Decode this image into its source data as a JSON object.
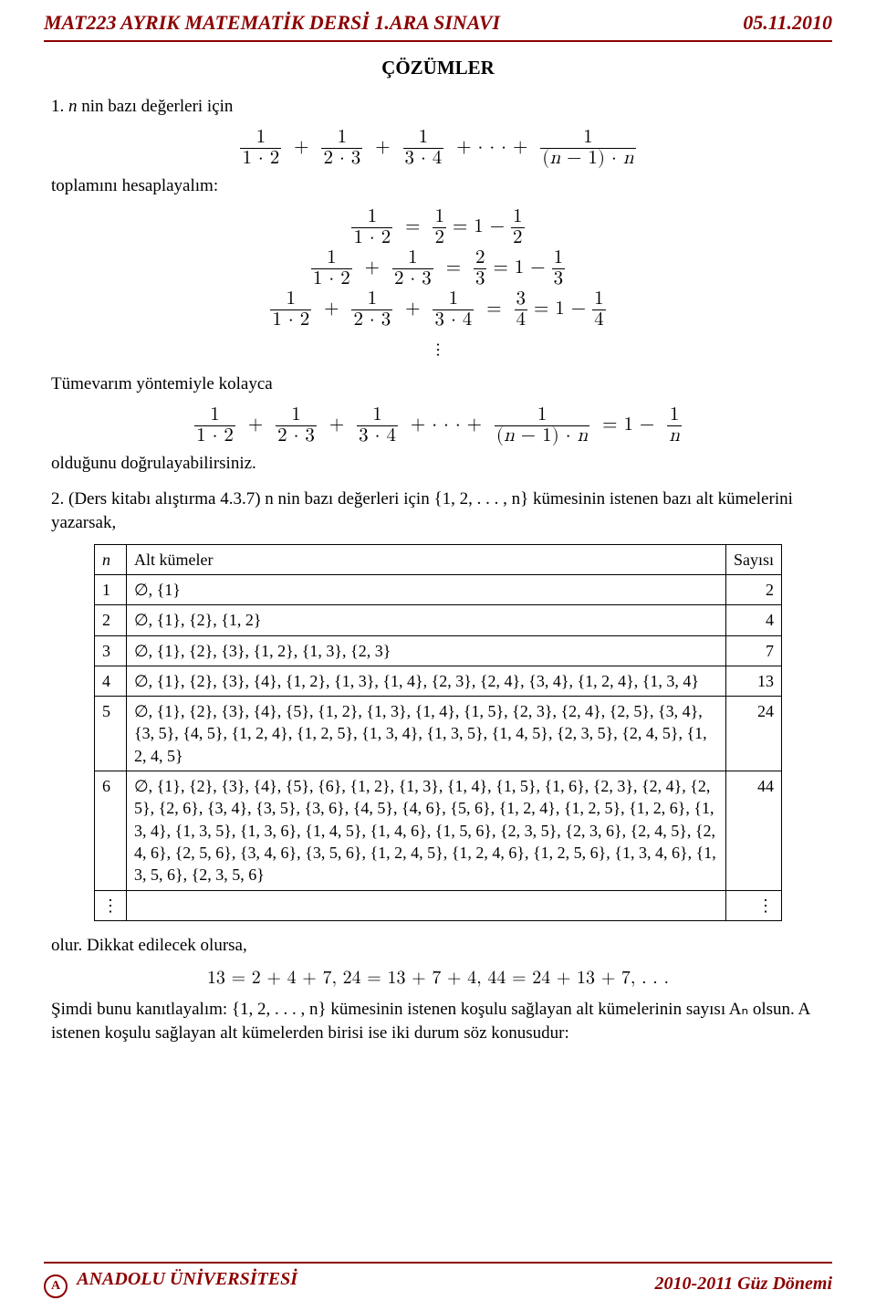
{
  "header": {
    "title": "MAT223 AYRIK MATEMATİK DERSİ 1.ARA SINAVI",
    "date": "05.11.2010"
  },
  "solutions_title": "ÇÖZÜMLER",
  "q1": {
    "intro_label": "1.",
    "intro_text": " n nin bazı değerleri için",
    "sum_text": "toplamını hesaplayalım:",
    "induction_text": "Tümevarım yöntemiyle kolayca",
    "verify_text": "olduğunu doğrulayabilirsiniz."
  },
  "q2": {
    "label": "2.",
    "text": " (Ders kitabı alıştırma 4.3.7) n nin bazı değerleri için {1, 2, . . . , n} kümesinin istenen bazı alt kümelerini yazarsak,",
    "table": {
      "col_n": "n",
      "col_sub": "Alt kümeler",
      "col_count": "Sayısı",
      "rows": [
        {
          "n": "1",
          "subsets": "∅, {1}",
          "count": "2"
        },
        {
          "n": "2",
          "subsets": "∅, {1}, {2}, {1, 2}",
          "count": "4"
        },
        {
          "n": "3",
          "subsets": "∅, {1}, {2}, {3}, {1, 2}, {1, 3}, {2, 3}",
          "count": "7"
        },
        {
          "n": "4",
          "subsets": "∅, {1}, {2}, {3}, {4}, {1, 2}, {1, 3}, {1, 4}, {2, 3}, {2, 4}, {3, 4}, {1, 2, 4}, {1, 3, 4}",
          "count": "13"
        },
        {
          "n": "5",
          "subsets": "∅, {1}, {2}, {3}, {4}, {5}, {1, 2}, {1, 3}, {1, 4}, {1, 5}, {2, 3}, {2, 4}, {2, 5}, {3, 4}, {3, 5}, {4, 5}, {1, 2, 4}, {1, 2, 5}, {1, 3, 4}, {1, 3, 5}, {1, 4, 5}, {2, 3, 5}, {2, 4, 5}, {1, 2, 4, 5}",
          "count": "24"
        },
        {
          "n": "6",
          "subsets": "∅, {1}, {2}, {3}, {4}, {5}, {6}, {1, 2}, {1, 3}, {1, 4}, {1, 5}, {1, 6}, {2, 3}, {2, 4}, {2, 5}, {2, 6}, {3, 4}, {3, 5}, {3, 6}, {4, 5}, {4, 6}, {5, 6}, {1, 2, 4}, {1, 2, 5}, {1, 2, 6}, {1, 3, 4}, {1, 3, 5}, {1, 3, 6}, {1, 4, 5}, {1, 4, 6}, {1, 5, 6}, {2, 3, 5}, {2, 3, 6}, {2, 4, 5}, {2, 4, 6}, {2, 5, 6}, {3, 4, 6}, {3, 5, 6}, {1, 2, 4, 5}, {1, 2, 4, 6}, {1, 2, 5, 6}, {1, 3, 4, 6}, {1, 3, 5, 6}, {2, 3, 5, 6}",
          "count": "44"
        },
        {
          "n": "⋮",
          "subsets": "",
          "count": "⋮"
        }
      ]
    },
    "after1": "olur. Dikkat edilecek olursa,",
    "eqs": "13 = 2 + 4 + 7,      24 = 13 + 7 + 4,      44 = 24 + 13 + 7, . . .",
    "after2": "Şimdi bunu kanıtlayalım: {1, 2, . . . , n} kümesinin istenen koşulu sağlayan alt kümelerinin sayısı Aₙ olsun. A istenen koşulu sağlayan alt kümelerden birisi ise iki durum söz konusudur:"
  },
  "footer": {
    "left": "ANADOLU ÜNİVERSİTESİ",
    "right": "2010-2011 Güz Dönemi"
  }
}
